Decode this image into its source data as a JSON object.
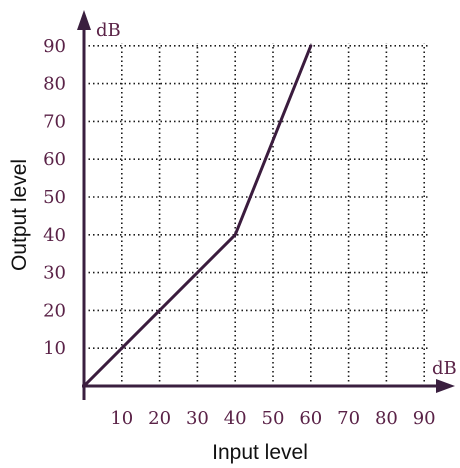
{
  "chart_data": {
    "type": "line",
    "title": "",
    "xlabel": "Input level",
    "ylabel": "Output level",
    "x_unit": "dB",
    "y_unit": "dB",
    "xlim": [
      0,
      90
    ],
    "ylim": [
      0,
      90
    ],
    "x_ticks": [
      10,
      20,
      30,
      40,
      50,
      60,
      70,
      80,
      90
    ],
    "y_ticks": [
      10,
      20,
      30,
      40,
      50,
      60,
      70,
      80,
      90
    ],
    "grid": true,
    "series": [
      {
        "x": [
          0,
          40,
          60
        ],
        "y": [
          0,
          40,
          90
        ]
      }
    ],
    "colors": {
      "line": "#3b1c3e",
      "axis": "#3a1f3f",
      "grid": "#1a1a1a",
      "tick_text": "#5a2247"
    }
  }
}
